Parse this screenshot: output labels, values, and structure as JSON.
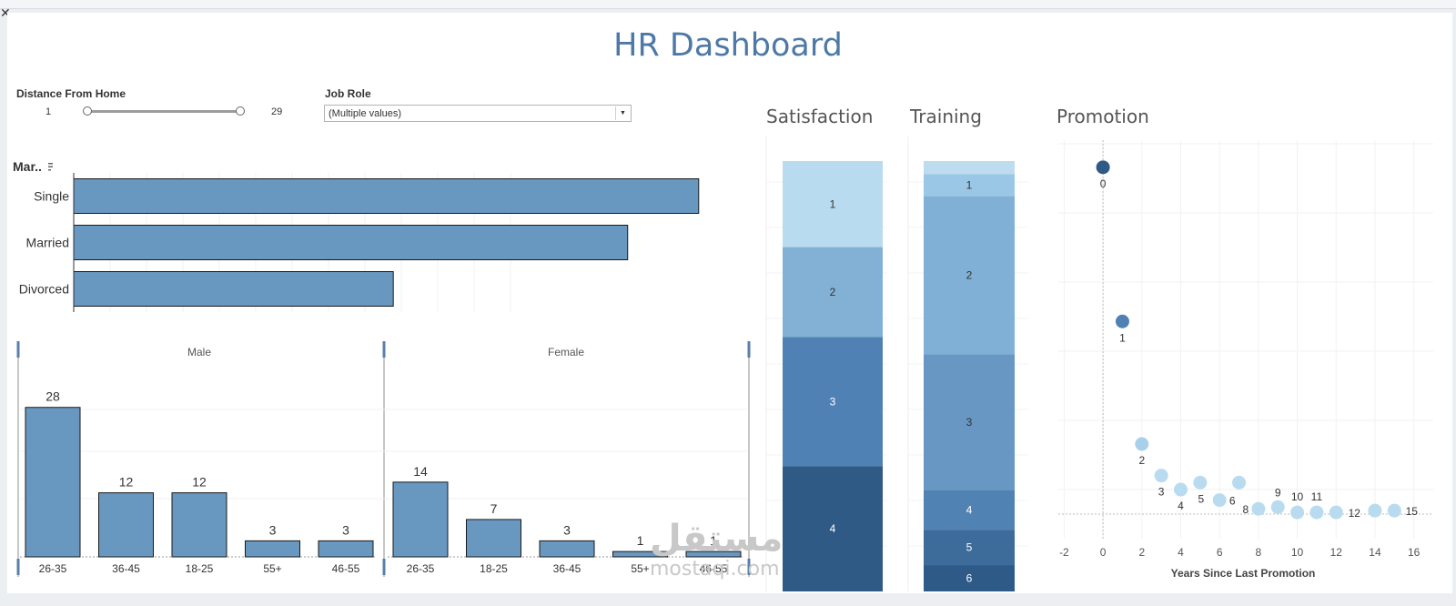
{
  "page": {
    "title": "HR Dashboard",
    "close_glyph": "✕"
  },
  "filters": {
    "distance": {
      "label": "Distance From Home",
      "min": "1",
      "max": "29"
    },
    "job_role": {
      "label": "Job Role",
      "value": "(Multiple values)",
      "arrow": "▼"
    }
  },
  "marital_label": "Mar..",
  "section_titles": {
    "satisfaction": "Satisfaction",
    "training": "Training",
    "promotion": "Promotion"
  },
  "watermark": {
    "arabic": "مستقل",
    "latin": "mostaqi.com"
  },
  "colors": {
    "bar": "#6897bf",
    "title": "#4e79a7"
  },
  "chart_data": [
    {
      "id": "marital",
      "type": "bar",
      "orientation": "horizontal",
      "categories": [
        "Single",
        "Married",
        "Divorced"
      ],
      "values": [
        88,
        78,
        45
      ],
      "xlim": [
        0,
        92
      ]
    },
    {
      "id": "gender_age",
      "type": "bar",
      "panels": [
        {
          "name": "Male",
          "categories": [
            "26-35",
            "36-45",
            "18-25",
            "55+",
            "46-55"
          ],
          "values": [
            28,
            12,
            12,
            3,
            3
          ]
        },
        {
          "name": "Female",
          "categories": [
            "26-35",
            "18-25",
            "36-45",
            "55+",
            "46-55"
          ],
          "values": [
            14,
            7,
            3,
            1,
            1
          ]
        }
      ],
      "ylim": [
        0,
        30
      ]
    },
    {
      "id": "satisfaction",
      "type": "bar",
      "stacked": true,
      "categories": [
        "1",
        "2",
        "3",
        "4"
      ],
      "values": [
        22,
        23,
        33,
        32
      ],
      "colors": [
        "#b9dbef",
        "#82b1d5",
        "#5081b5",
        "#2f5a86"
      ],
      "text_colors": [
        "#333333",
        "#333333",
        "#ffffff",
        "#ffffff"
      ]
    },
    {
      "id": "training",
      "type": "bar",
      "stacked": true,
      "categories": [
        "0",
        "1",
        "2",
        "3",
        "4",
        "5",
        "6"
      ],
      "values": [
        3,
        5,
        36,
        31,
        9,
        8,
        6
      ],
      "labels": [
        "",
        "1",
        "2",
        "3",
        "4",
        "5",
        "6"
      ],
      "colors": [
        "#bedcf0",
        "#9bc7e6",
        "#80b0d5",
        "#6797c2",
        "#5082b4",
        "#3d6c9b",
        "#2e5a87"
      ],
      "text_colors": [
        "#333333",
        "#333333",
        "#333333",
        "#333333",
        "#ffffff",
        "#ffffff",
        "#ffffff"
      ]
    },
    {
      "id": "promotion",
      "type": "scatter",
      "xlabel": "Years Since Last Promotion",
      "xticks": [
        "-2",
        "0",
        "2",
        "4",
        "6",
        "8",
        "10",
        "12",
        "14",
        "16"
      ],
      "xlim": [
        -2.3,
        17
      ],
      "ylim": [
        0,
        100
      ],
      "points": [
        {
          "x": 0,
          "y": 99,
          "label": "0",
          "color": "#2f5a86"
        },
        {
          "x": 1,
          "y": 55,
          "label": "1",
          "color": "#5081b5"
        },
        {
          "x": 2,
          "y": 20,
          "label": "2",
          "color": "#a9d0eb"
        },
        {
          "x": 3,
          "y": 11,
          "label": "3",
          "color": "#b9dbef"
        },
        {
          "x": 4,
          "y": 7,
          "label": "4",
          "color": "#b9dbef"
        },
        {
          "x": 5,
          "y": 9,
          "label": "5",
          "color": "#b9dbef"
        },
        {
          "x": 6,
          "y": 4,
          "label": "6",
          "color": "#b9dbef"
        },
        {
          "x": 7,
          "y": 9,
          "label": "",
          "color": "#b9dbef"
        },
        {
          "x": 8,
          "y": 1.5,
          "label": "8",
          "color": "#b9dbef"
        },
        {
          "x": 9,
          "y": 2,
          "label": "9",
          "color": "#b9dbef"
        },
        {
          "x": 10,
          "y": 0.5,
          "label": "10",
          "color": "#b9dbef"
        },
        {
          "x": 11,
          "y": 0.5,
          "label": "11",
          "color": "#b9dbef"
        },
        {
          "x": 12,
          "y": 0.5,
          "label": "12",
          "color": "#b9dbef"
        },
        {
          "x": 14,
          "y": 1,
          "label": "",
          "color": "#b9dbef"
        },
        {
          "x": 15,
          "y": 1,
          "label": "15",
          "color": "#b9dbef"
        }
      ]
    }
  ]
}
